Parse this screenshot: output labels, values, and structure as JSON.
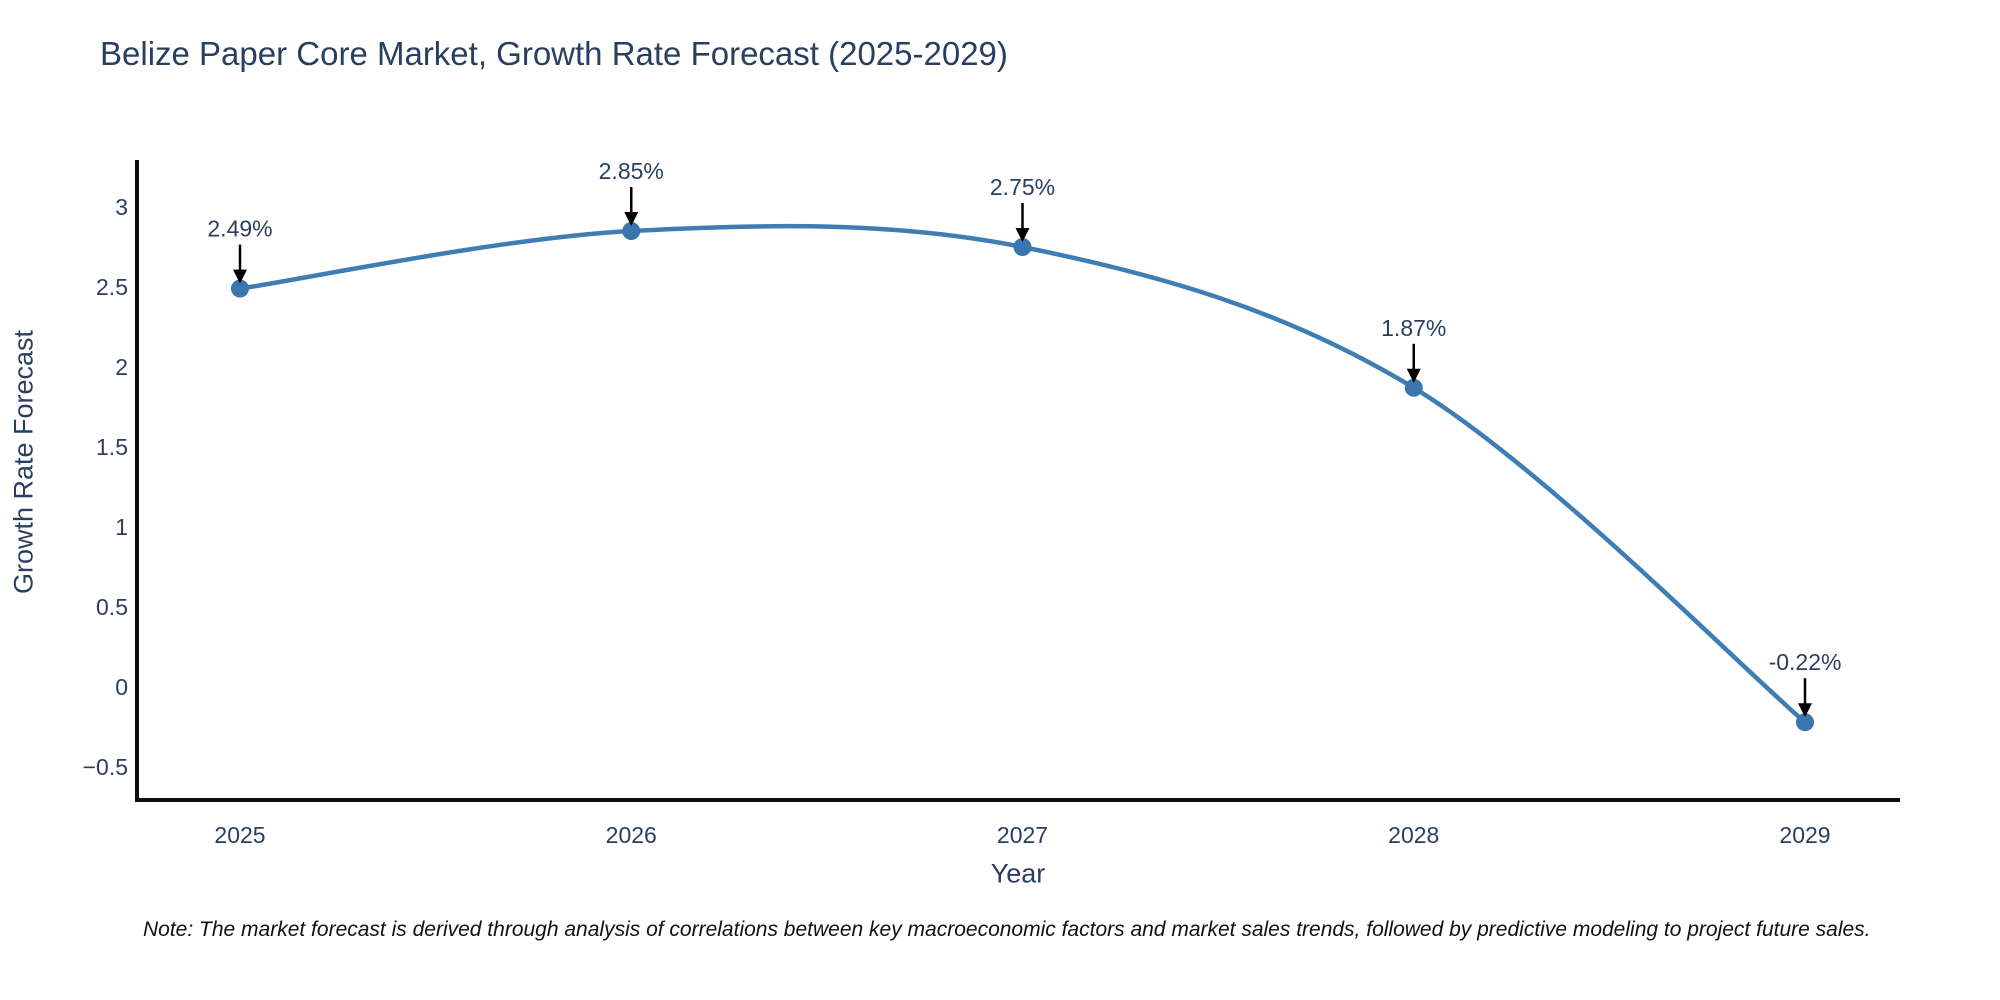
{
  "note": "Note: The market forecast is derived through analysis of correlations between key macroeconomic factors and market sales trends, followed by predictive modeling to project future sales.",
  "colors": {
    "background": "#ffffff",
    "title_text": "#2a3f5f",
    "tick_text": "#2a3f5f",
    "axis_line": "#0d0d0d",
    "line": "#3f7db5",
    "marker": "#3a76ad",
    "annotation_text": "#2a3f5f",
    "annotation_arrow": "#000000",
    "note_text": "#111111"
  },
  "chart_data": {
    "type": "line",
    "line_shape": "spline",
    "title": "Belize Paper Core Market, Growth Rate Forecast (2025-2029)",
    "xlabel": "Year",
    "ylabel": "Growth Rate Forecast",
    "categories": [
      "2025",
      "2026",
      "2027",
      "2028",
      "2029"
    ],
    "series": [
      {
        "name": "Growth Rate Forecast",
        "values": [
          2.49,
          2.85,
          2.75,
          1.87,
          -0.22
        ],
        "point_labels": [
          "2.49%",
          "2.85%",
          "2.75%",
          "1.87%",
          "-0.22%"
        ]
      }
    ],
    "ytick_values": [
      3,
      2.5,
      2,
      1.5,
      1,
      0.5,
      0,
      -0.5
    ],
    "ytick_labels": [
      "3",
      "2.5",
      "2",
      "1.5",
      "1",
      "0.5",
      "0",
      "−0.5"
    ],
    "ylim": [
      -0.7,
      3.3
    ],
    "grid": false,
    "legend": "none",
    "markers": true,
    "annotations": "each data point labeled with its percent value and a downward black arrow"
  }
}
